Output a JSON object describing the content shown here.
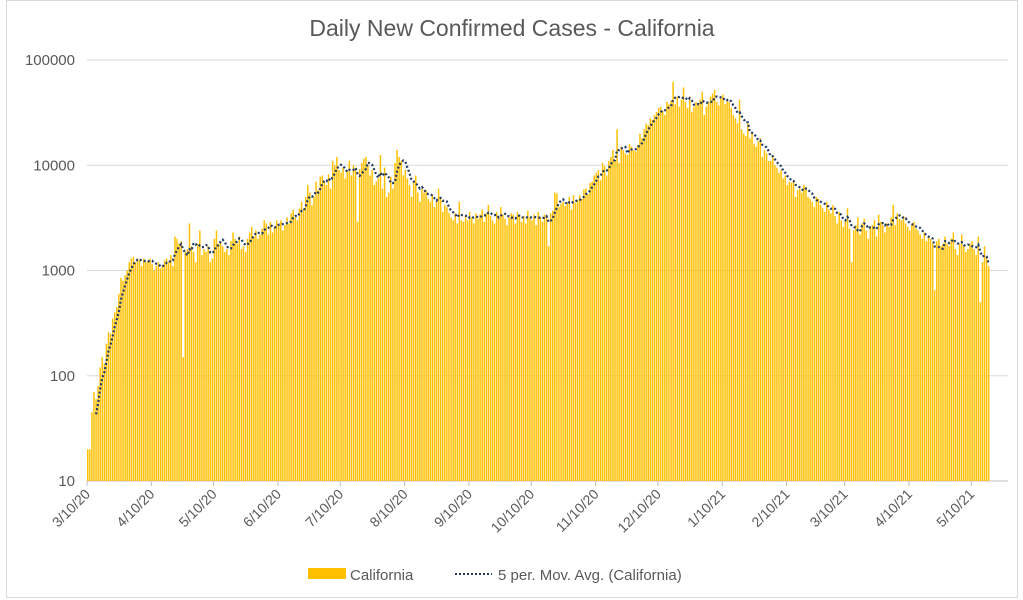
{
  "chart_data": {
    "type": "bar",
    "title": "Daily New Confirmed Cases - California",
    "xlabel": "",
    "ylabel": "",
    "yscale": "log",
    "ylim": [
      10,
      100000
    ],
    "yticks": [
      "10",
      "100",
      "1000",
      "10000",
      "100000"
    ],
    "grid": true,
    "start_date": "2020-03-10",
    "xticks": [
      "3/10/20",
      "4/10/20",
      "5/10/20",
      "6/10/20",
      "7/10/20",
      "8/10/20",
      "9/10/20",
      "10/10/20",
      "11/10/20",
      "12/10/20",
      "1/10/21",
      "2/10/21",
      "3/10/21",
      "4/10/21",
      "5/10/21"
    ],
    "legend_position": "bottom",
    "series": [
      {
        "name": "California",
        "type": "bar",
        "color": "#FFC000",
        "values": [
          20,
          20,
          45,
          70,
          60,
          80,
          120,
          150,
          130,
          200,
          260,
          250,
          350,
          400,
          450,
          600,
          850,
          800,
          900,
          1000,
          1200,
          1300,
          1350,
          1200,
          1300,
          1250,
          1100,
          1300,
          1200,
          1250,
          1300,
          1150,
          1000,
          1100,
          1200,
          1050,
          1100,
          1250,
          1300,
          1200,
          1400,
          1100,
          2100,
          2000,
          1800,
          1900,
          150,
          1500,
          1600,
          2800,
          1700,
          1500,
          1200,
          1800,
          2400,
          1400,
          1600,
          1500,
          1700,
          1200,
          1300,
          2000,
          2400,
          1800,
          1900,
          1700,
          1500,
          1600,
          1400,
          1900,
          2300,
          2000,
          1800,
          2100,
          1600,
          1700,
          1500,
          2000,
          2300,
          2600,
          2100,
          2400,
          2000,
          2200,
          2500,
          3000,
          2800,
          2200,
          2900,
          2300,
          2600,
          3000,
          2800,
          3000,
          2400,
          2700,
          3200,
          2800,
          3500,
          3800,
          3200,
          3000,
          3900,
          4500,
          3800,
          5000,
          6500,
          5500,
          4200,
          5000,
          7000,
          5800,
          7800,
          8000,
          7000,
          6500,
          8200,
          6000,
          11000,
          10000,
          12000,
          9000,
          8500,
          9500,
          7500,
          8800,
          11000,
          8000,
          10000,
          9500,
          2900,
          9200,
          10500,
          11500,
          12000,
          10000,
          8000,
          9000,
          6500,
          7000,
          7500,
          12500,
          6000,
          9500,
          5000,
          5500,
          7800,
          6000,
          10500,
          14000,
          12000,
          11000,
          8000,
          9000,
          7500,
          6500,
          5000,
          7000,
          8000,
          5500,
          4500,
          6000,
          5500,
          5800,
          4800,
          4500,
          5200,
          4000,
          4500,
          6000,
          4800,
          3600,
          4200,
          4000,
          3500,
          3200,
          3000,
          3500,
          2800,
          4500,
          3000,
          2900,
          3300,
          3000,
          3600,
          3200,
          2800,
          3500,
          3100,
          3400,
          3800,
          2900,
          3500,
          4200,
          3300,
          3000,
          2800,
          3600,
          3200,
          4000,
          3400,
          3100,
          2700,
          3200,
          3500,
          3400,
          2800,
          3600,
          3300,
          2900,
          3300,
          2800,
          3700,
          3200,
          3000,
          3400,
          2700,
          3600,
          3200,
          2900,
          3400,
          3300,
          1700,
          3500,
          3700,
          5500,
          5400,
          4000,
          4300,
          4500,
          4100,
          4400,
          5000,
          3800,
          5200,
          4400,
          4700,
          5200,
          4800,
          5900,
          6000,
          5300,
          6800,
          7000,
          8000,
          8500,
          9000,
          7200,
          10500,
          9800,
          8000,
          11000,
          12000,
          14000,
          11000,
          22000,
          10500,
          15000,
          14000,
          13000,
          12500,
          16000,
          15000,
          14000,
          13500,
          15500,
          20000,
          18000,
          22000,
          25000,
          24000,
          28000,
          27000,
          30000,
          32000,
          35000,
          36000,
          33000,
          30000,
          40000,
          38000,
          41000,
          62000,
          38000,
          45000,
          36000,
          42000,
          55000,
          40000,
          35000,
          45000,
          32000,
          36000,
          40000,
          38000,
          42000,
          50000,
          30000,
          36000,
          40000,
          45000,
          48000,
          52000,
          40000,
          37000,
          44000,
          47000,
          38000,
          42000,
          40000,
          35000,
          30000,
          28000,
          25000,
          42000,
          22000,
          20000,
          19000,
          25000,
          18000,
          20000,
          16000,
          15000,
          17000,
          18000,
          12000,
          14000,
          13000,
          11000,
          11000,
          12000,
          10000,
          9500,
          8500,
          9000,
          7500,
          8000,
          6500,
          7000,
          6800,
          7200,
          5000,
          5800,
          6000,
          5500,
          6500,
          6200,
          5000,
          4800,
          4500,
          4000,
          5000,
          4800,
          4200,
          3900,
          3600,
          4500,
          3800,
          3500,
          4200,
          3300,
          2800,
          3600,
          3000,
          2600,
          3000,
          3900,
          2500,
          1200,
          2400,
          2700,
          3200,
          2200,
          2800,
          3100,
          2400,
          2000,
          2600,
          2700,
          3000,
          2100,
          3400,
          2900,
          2700,
          2300,
          2800,
          2600,
          3200,
          4200,
          2700,
          3500,
          3100,
          3000,
          3300,
          2800,
          2600,
          2400,
          2700,
          2900,
          2500,
          2400,
          2200,
          2000,
          2300,
          1900,
          2100,
          2000,
          1800,
          650,
          1900,
          2000,
          1700,
          1800,
          2100,
          1800,
          1700,
          2000,
          2300,
          1600,
          1400,
          1800,
          2200,
          1700,
          1500,
          1600,
          1800,
          1900,
          1600,
          1400,
          2100,
          500,
          1200,
          1700,
          1300,
          1100
        ]
      },
      {
        "name": "5 per. Mov. Avg. (California)",
        "type": "line",
        "period": 5,
        "color": "#203864",
        "style": "dotted"
      }
    ]
  }
}
